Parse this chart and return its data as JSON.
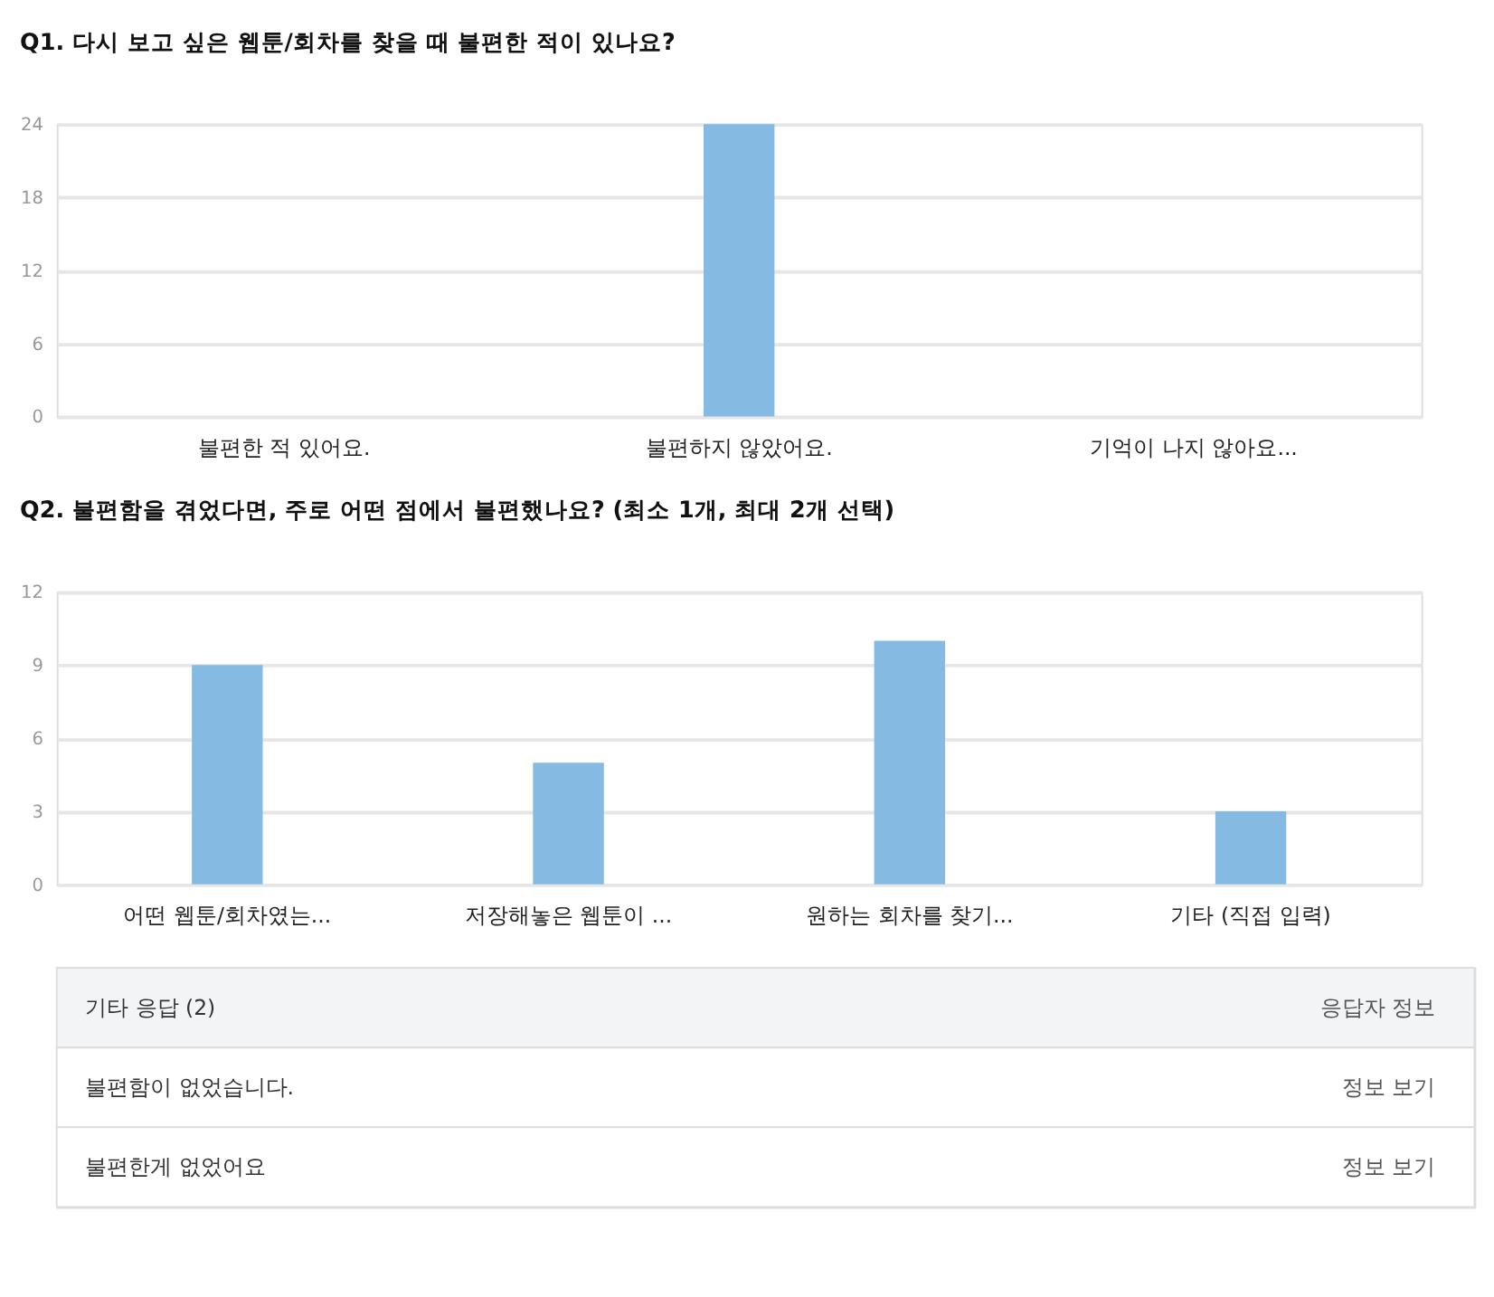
{
  "chart_data": [
    {
      "type": "bar",
      "title": "Q1. 다시 보고 싶은 웹툰/회차를 찾을 때 불편한 적이 있나요?",
      "categories": [
        "불편한 적 있어요.",
        "불편하지 않았어요.",
        "기억이 나지 않아요..."
      ],
      "values": [
        0,
        24,
        0
      ],
      "color": "#85bbe2",
      "ylim": [
        0,
        24
      ],
      "yticks": [
        0,
        6,
        12,
        18,
        24
      ],
      "grid": "y"
    },
    {
      "type": "bar",
      "title": "Q2. 불편함을 겪었다면, 주로 어떤 점에서 불편했나요?  (최소 1개, 최대 2개 선택)",
      "categories": [
        "어떤 웹툰/회차였는...",
        "저장해놓은 웹툰이 ...",
        "원하는 회차를 찾기...",
        "기타 (직접 입력)"
      ],
      "values": [
        9,
        5,
        10,
        3
      ],
      "color": "#85bbe2",
      "ylim": [
        0,
        12
      ],
      "yticks": [
        0,
        3,
        6,
        9,
        12
      ],
      "grid": "y",
      "annotations": [
        "기타 응답 (2)",
        "응답자 정보",
        "불편함이 없었습니다.",
        "정보 보기",
        "불편한게 없었어요",
        "정보 보기"
      ]
    }
  ]
}
